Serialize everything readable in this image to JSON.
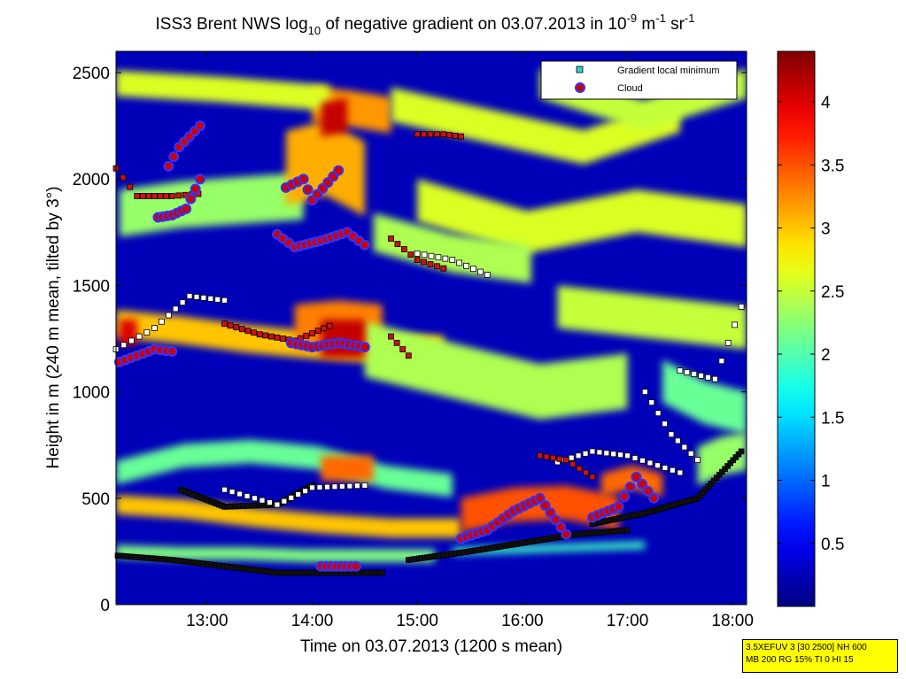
{
  "chart_data": {
    "type": "heatmap",
    "title": {
      "prefix": "ISS3 Brent NWS log",
      "log_base": "10",
      "middle": " of negative gradient on 03.07.2013 in 10",
      "exp1": "-9",
      "unit1": " m",
      "exp2": "-1",
      "unit2": " sr",
      "exp3": "-1"
    },
    "xlabel": "Time on 03.07.2013 (1200 s mean)",
    "ylabel": "Height in m (240 m mean, tilted by 3°)",
    "xlim": [
      "12:08",
      "18:08"
    ],
    "ylim": [
      0,
      2600
    ],
    "xticks": [
      "13:00",
      "14:00",
      "15:00",
      "16:00",
      "17:00",
      "18:00"
    ],
    "yticks": [
      0,
      500,
      1000,
      1500,
      2000,
      2500
    ],
    "colorbar": {
      "ticks": [
        "0.5",
        "1",
        "1.5",
        "2",
        "2.5",
        "3",
        "3.5",
        "4"
      ],
      "range": [
        0,
        4.4
      ],
      "colormap": "jet"
    },
    "background_value": 0.25,
    "layers": [
      {
        "x0": "12:08",
        "x1": "15:15",
        "h": [
          1320,
          1290,
          1250,
          1220,
          1200,
          1200
        ],
        "w": 130,
        "v": 3.0
      },
      {
        "x0": "12:08",
        "x1": "15:20",
        "h": [
          620,
          700,
          720,
          690,
          600,
          560
        ],
        "w": 110,
        "v": 2.1
      },
      {
        "x0": "12:08",
        "x1": "15:25",
        "h": [
          470,
          450,
          410,
          380,
          360,
          360
        ],
        "w": 90,
        "v": 3.0
      },
      {
        "x0": "12:08",
        "x1": "15:10",
        "h": [
          250,
          240,
          240,
          230,
          230,
          230
        ],
        "w": 60,
        "v": 2.2
      },
      {
        "x0": "12:10",
        "x1": "13:55",
        "h": [
          1840,
          1880,
          1900,
          1920
        ],
        "w": 220,
        "v": 2.3
      },
      {
        "x0": "13:50",
        "x1": "14:40",
        "h": [
          1300,
          1320,
          1300
        ],
        "w": 220,
        "v": 3.3
      },
      {
        "x0": "13:45",
        "x1": "14:30",
        "h": [
          2050,
          2100,
          2000
        ],
        "w": 350,
        "v": 3.1
      },
      {
        "x0": "14:00",
        "x1": "14:45",
        "h": [
          2350,
          2330,
          2300
        ],
        "w": 170,
        "v": 3.2
      },
      {
        "x0": "12:08",
        "x1": "14:10",
        "h": [
          2450,
          2420,
          2380
        ],
        "w": 120,
        "v": 2.6
      },
      {
        "x0": "14:45",
        "x1": "17:30",
        "h": [
          2350,
          2250,
          2150,
          2300
        ],
        "w": 160,
        "v": 2.6
      },
      {
        "x0": "16:10",
        "x1": "18:08",
        "h": [
          2450,
          2300,
          2450
        ],
        "w": 140,
        "v": 2.5
      },
      {
        "x0": "15:00",
        "x1": "18:08",
        "h": [
          1900,
          1750,
          1850,
          1780
        ],
        "w": 200,
        "v": 2.6
      },
      {
        "x0": "14:35",
        "x1": "16:05",
        "h": [
          1750,
          1650,
          1600
        ],
        "w": 180,
        "v": 2.4
      },
      {
        "x0": "14:30",
        "x1": "17:00",
        "h": [
          1200,
          1100,
          1000,
          1050
        ],
        "w": 260,
        "v": 2.4
      },
      {
        "x0": "16:20",
        "x1": "18:08",
        "h": [
          1400,
          1350,
          1300
        ],
        "w": 200,
        "v": 2.5
      },
      {
        "x0": "17:20",
        "x1": "18:08",
        "h": [
          1050,
          950,
          900
        ],
        "w": 200,
        "v": 2.1
      },
      {
        "x0": "17:40",
        "x1": "18:08",
        "h": [
          650,
          700,
          720
        ],
        "w": 180,
        "v": 2.3
      },
      {
        "x0": "15:20",
        "x1": "17:10",
        "h": [
          250,
          260,
          270,
          280
        ],
        "w": 35,
        "v": 1.9
      },
      {
        "x0": "15:25",
        "x1": "16:55",
        "h": [
          420,
          470,
          480,
          430
        ],
        "w": 160,
        "v": 3.5
      },
      {
        "x0": "14:05",
        "x1": "14:35",
        "h": [
          640,
          640
        ],
        "w": 120,
        "v": 3.4
      },
      {
        "x0": "16:45",
        "x1": "17:20",
        "h": [
          560,
          600,
          560
        ],
        "w": 110,
        "v": 3.4
      },
      {
        "x0": "12:10",
        "x1": "12:20",
        "h": [
          1280,
          1280
        ],
        "w": 120,
        "v": 4.0
      },
      {
        "x0": "14:05",
        "x1": "14:30",
        "h": [
          1250,
          1250
        ],
        "w": 180,
        "v": 4.1
      },
      {
        "x0": "14:05",
        "x1": "14:20",
        "h": [
          2280,
          2300
        ],
        "w": 160,
        "v": 4.1
      }
    ],
    "series": [
      {
        "name": "Gradient local minimum",
        "marker": "square",
        "color": "#33cccc",
        "segments": [
          {
            "x": [
              "12:09",
              "12:40",
              "13:10",
              "13:40",
              "14:10",
              "14:40"
            ],
            "y": [
              230,
              210,
              180,
              150,
              150,
              150
            ]
          },
          {
            "x": [
              "14:55",
              "15:30",
              "16:00",
              "16:30",
              "17:00"
            ],
            "y": [
              210,
              250,
              290,
              330,
              350
            ]
          },
          {
            "x": [
              "16:40",
              "17:10",
              "17:40",
              "18:05"
            ],
            "y": [
              380,
              430,
              500,
              720
            ]
          },
          {
            "x": [
              "12:45",
              "13:10",
              "13:40",
              "14:00"
            ],
            "y": [
              540,
              460,
              470,
              560
            ]
          }
        ]
      },
      {
        "name": "Cloud",
        "marker": "circle",
        "color": "#d00000",
        "segments": [
          {
            "x": [
              "12:10",
              "12:20",
              "12:30",
              "12:40"
            ],
            "y": [
              1140,
              1170,
              1200,
              1190
            ]
          },
          {
            "x": [
              "12:32",
              "12:40",
              "12:48",
              "12:56"
            ],
            "y": [
              1820,
              1830,
              1860,
              2000
            ]
          },
          {
            "x": [
              "12:38",
              "12:44",
              "12:50",
              "12:56"
            ],
            "y": [
              2060,
              2150,
              2200,
              2250
            ]
          },
          {
            "x": [
              "13:40",
              "13:50",
              "14:05",
              "14:20",
              "14:30"
            ],
            "y": [
              1740,
              1680,
              1710,
              1750,
              1690
            ]
          },
          {
            "x": [
              "13:45",
              "13:55",
              "14:00",
              "14:15"
            ],
            "y": [
              1960,
              2000,
              1900,
              2040
            ]
          },
          {
            "x": [
              "13:48",
              "14:00",
              "14:15",
              "14:30"
            ],
            "y": [
              1230,
              1210,
              1230,
              1210
            ]
          },
          {
            "x": [
              "14:05",
              "14:25"
            ],
            "y": [
              180,
              180
            ]
          },
          {
            "x": [
              "15:25",
              "15:40",
              "15:55",
              "16:10",
              "16:25"
            ],
            "y": [
              310,
              350,
              440,
              500,
              330
            ]
          },
          {
            "x": [
              "16:40",
              "16:55",
              "17:05",
              "17:15"
            ],
            "y": [
              410,
              460,
              600,
              500
            ]
          }
        ]
      }
    ],
    "white_squares": [
      {
        "x": [
          "12:08",
          "12:30",
          "12:50",
          "13:10"
        ],
        "y": [
          1200,
          1300,
          1450,
          1430
        ]
      },
      {
        "x": [
          "13:10",
          "13:40",
          "14:00",
          "14:30"
        ],
        "y": [
          540,
          470,
          550,
          560
        ]
      },
      {
        "x": [
          "15:00",
          "15:20",
          "15:40"
        ],
        "y": [
          1650,
          1620,
          1550
        ]
      },
      {
        "x": [
          "16:20",
          "16:40",
          "17:00",
          "17:30"
        ],
        "y": [
          670,
          720,
          700,
          620
        ]
      },
      {
        "x": [
          "17:30",
          "17:50",
          "18:05"
        ],
        "y": [
          1100,
          1060,
          1400
        ]
      },
      {
        "x": [
          "17:10",
          "17:25",
          "17:40"
        ],
        "y": [
          1000,
          800,
          680
        ]
      }
    ],
    "red_squares": [
      {
        "x": [
          "12:08",
          "12:20",
          "12:40",
          "12:55"
        ],
        "y": [
          2050,
          1920,
          1920,
          1930
        ]
      },
      {
        "x": [
          "13:10",
          "13:30",
          "13:50",
          "14:10"
        ],
        "y": [
          1320,
          1270,
          1240,
          1310
        ]
      },
      {
        "x": [
          "15:00",
          "15:15",
          "15:25"
        ],
        "y": [
          2210,
          2210,
          2200
        ]
      },
      {
        "x": [
          "14:45",
          "15:00",
          "15:15"
        ],
        "y": [
          1720,
          1620,
          1580
        ]
      },
      {
        "x": [
          "14:45",
          "14:55"
        ],
        "y": [
          1260,
          1170
        ]
      },
      {
        "x": [
          "16:10",
          "16:25",
          "16:40"
        ],
        "y": [
          700,
          680,
          600
        ]
      }
    ]
  },
  "legend": {
    "minimum_label": "Gradient local minimum",
    "cloud_label": "Cloud"
  },
  "info_box": {
    "line1": "3.5XEFUV 3 [30 2500] NH 600",
    "line2": "MB 200 RG 15% TI 0 HI 15"
  }
}
